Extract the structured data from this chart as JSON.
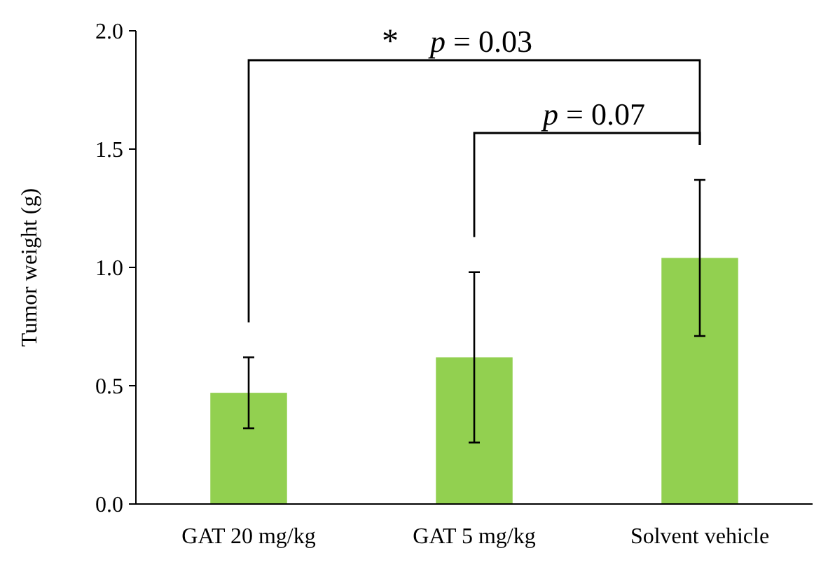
{
  "chart_data": {
    "type": "bar",
    "ylabel": "Tumor weight (g)",
    "categories": [
      "GAT 20 mg/kg",
      "GAT 5 mg/kg",
      "Solvent vehicle"
    ],
    "values": [
      0.47,
      0.62,
      1.04
    ],
    "errors": [
      0.15,
      0.36,
      0.33
    ],
    "color": "#92d050",
    "ylim": [
      0,
      2
    ],
    "yticks": [
      {
        "value": 0,
        "label": "0.0"
      },
      {
        "value": 0.5,
        "label": "0.5"
      },
      {
        "value": 1,
        "label": "1.0"
      },
      {
        "value": 1.5,
        "label": "1.5"
      },
      {
        "value": 2,
        "label": "2.0"
      }
    ],
    "annotations": [
      "*",
      "p = 0.03",
      "p = 0.07"
    ]
  }
}
